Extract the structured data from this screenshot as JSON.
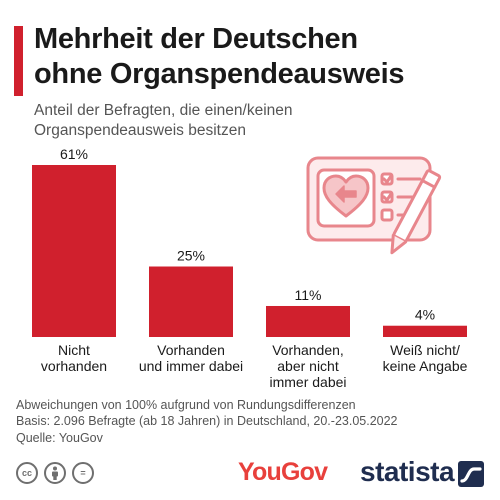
{
  "header": {
    "title_line1": "Mehrheit der Deutschen",
    "title_line2": "ohne Organspendeausweis",
    "subtitle_line1": "Anteil der Befragten, die einen/keinen",
    "subtitle_line2": "Organspendeausweis besitzen"
  },
  "colors": {
    "accent": "#d0202d",
    "bar": "#d0202d",
    "illustration": "#e8868c"
  },
  "illustration_icon": "organ-donor-card-icon",
  "chart_data": {
    "type": "bar",
    "title": "Mehrheit der Deutschen ohne Organspendeausweis",
    "subtitle": "Anteil der Befragten, die einen/keinen Organspendeausweis besitzen",
    "categories": [
      [
        "Nicht",
        "vorhanden"
      ],
      [
        "Vorhanden",
        "und immer dabei"
      ],
      [
        "Vorhanden,",
        "aber nicht",
        "immer dabei"
      ],
      [
        "Weiß nicht/",
        "keine Angabe"
      ]
    ],
    "values": [
      61,
      25,
      11,
      4
    ],
    "value_labels": [
      "61%",
      "25%",
      "11%",
      "4%"
    ],
    "unit": "%",
    "ylim": [
      0,
      61
    ],
    "grid": false,
    "legend": "none"
  },
  "footer": {
    "note1": "Abweichungen von 100% aufgrund von Rundungsdifferenzen",
    "note2": "Basis: 2.096 Befragte (ab 18 Jahren) in Deutschland, 20.-23.05.2022",
    "source": "Quelle: YouGov",
    "license_icons": [
      "cc",
      "by",
      "="
    ],
    "partner_logo": "YouGov",
    "brand_logo": "statista"
  }
}
